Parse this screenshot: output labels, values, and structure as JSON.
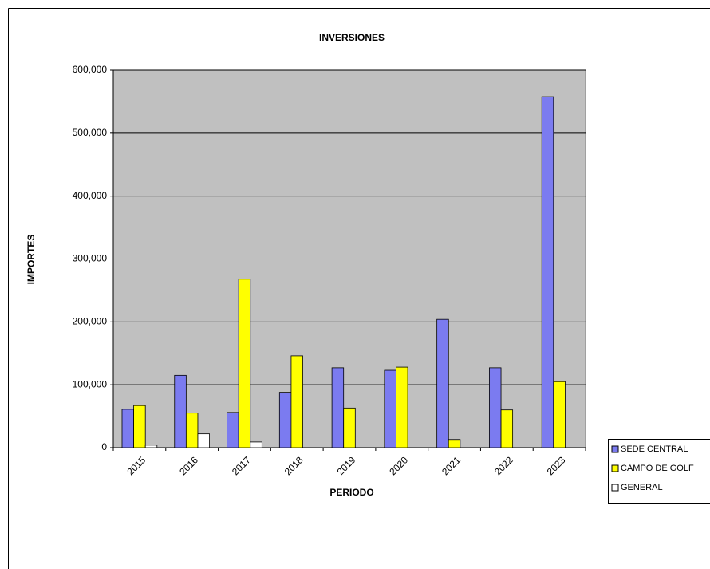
{
  "chart_data": {
    "type": "bar",
    "title": "INVERSIONES",
    "x_label": "PERIODO",
    "y_label": "IMPORTES",
    "categories": [
      "2015",
      "2016",
      "2017",
      "2018",
      "2019",
      "2020",
      "2021",
      "2022",
      "2023"
    ],
    "series": [
      {
        "name": "SEDE CENTRAL",
        "color": "#7b7bf0",
        "values": [
          61000,
          115000,
          56000,
          88000,
          127000,
          123000,
          204000,
          127000,
          558000
        ]
      },
      {
        "name": "CAMPO DE GOLF",
        "color": "#ffff00",
        "values": [
          67000,
          55000,
          268000,
          146000,
          63000,
          128000,
          13000,
          60000,
          105000
        ]
      },
      {
        "name": "GENERAL",
        "color": "#ffffff",
        "values": [
          4000,
          22000,
          9000,
          0,
          0,
          0,
          0,
          0,
          0
        ]
      }
    ],
    "ylim": [
      0,
      600000
    ],
    "yticks": [
      0,
      {
        "value": 100000,
        "label": "100,000"
      },
      {
        "value": 200000,
        "label": "200,000"
      },
      {
        "value": 300000,
        "label": "300,000"
      },
      {
        "value": 400000,
        "label": "400,000"
      },
      {
        "value": 500000,
        "label": "500,000"
      },
      {
        "value": 600000,
        "label": "600,000"
      }
    ],
    "grid": true,
    "legend": "bottom-right"
  }
}
